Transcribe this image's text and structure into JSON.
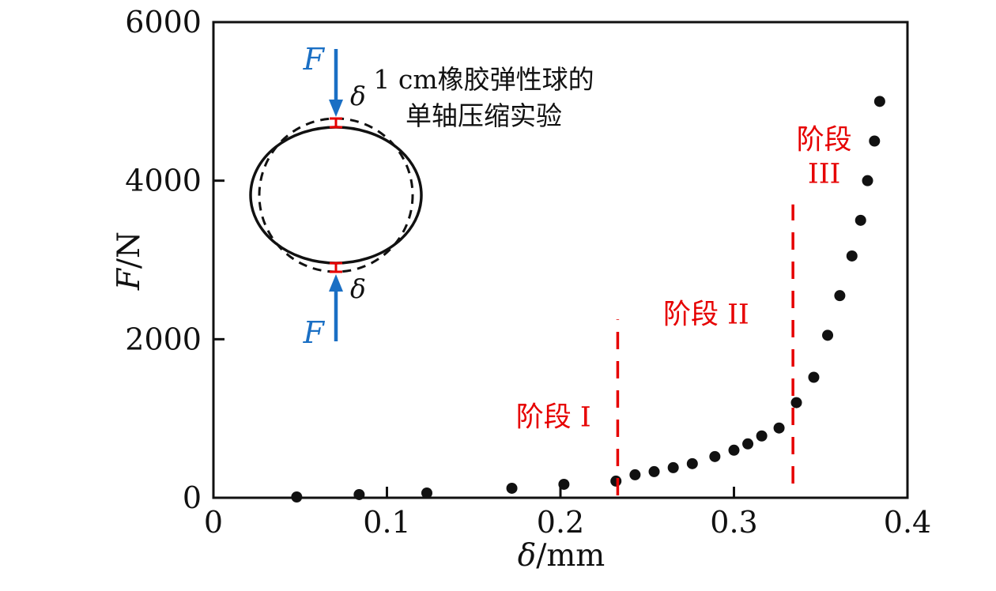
{
  "figure": {
    "background": "#ffffff"
  },
  "colors": {
    "black": "#111111",
    "red": "#e60000",
    "blue": "#1a6fc4"
  },
  "inset": {
    "force_label": "F",
    "delta_label": "δ"
  },
  "chart_data": {
    "type": "scatter",
    "title_lines": [
      "1 cm橡胶弹性球的",
      "单轴压缩实验"
    ],
    "xlabel": {
      "symbol": "δ",
      "unit": "/mm"
    },
    "ylabel": {
      "symbol": "F",
      "unit": "/N"
    },
    "xlim": [
      0,
      0.4
    ],
    "ylim": [
      0,
      6000
    ],
    "x_ticks": [
      0,
      0.1,
      0.2,
      0.3,
      0.4
    ],
    "x_tick_labels": [
      "0",
      "0.1",
      "0.2",
      "0.3",
      "0.4"
    ],
    "y_ticks": [
      0,
      2000,
      4000,
      6000
    ],
    "y_tick_labels": [
      "0",
      "2000",
      "4000",
      "6000"
    ],
    "grid": false,
    "legend": false,
    "points": [
      [
        0.048,
        10
      ],
      [
        0.084,
        40
      ],
      [
        0.123,
        60
      ],
      [
        0.172,
        120
      ],
      [
        0.202,
        170
      ],
      [
        0.232,
        210
      ],
      [
        0.243,
        290
      ],
      [
        0.254,
        330
      ],
      [
        0.265,
        380
      ],
      [
        0.276,
        430
      ],
      [
        0.289,
        520
      ],
      [
        0.3,
        600
      ],
      [
        0.308,
        680
      ],
      [
        0.316,
        780
      ],
      [
        0.326,
        880
      ],
      [
        0.336,
        1200
      ],
      [
        0.346,
        1520
      ],
      [
        0.354,
        2050
      ],
      [
        0.361,
        2550
      ],
      [
        0.368,
        3050
      ],
      [
        0.373,
        3500
      ],
      [
        0.377,
        4000
      ],
      [
        0.381,
        4500
      ],
      [
        0.384,
        5000
      ]
    ],
    "stage_lines": [
      {
        "x": 0.233,
        "f_start": 30,
        "f_end": 2250
      },
      {
        "x": 0.334,
        "f_start": 180,
        "f_end": 3700
      }
    ],
    "stage_labels": [
      {
        "lines": [
          "阶段 I"
        ],
        "x": 0.196,
        "f": 900
      },
      {
        "lines": [
          "阶段 II"
        ],
        "x": 0.284,
        "f": 2200
      },
      {
        "lines": [
          "阶段",
          "III"
        ],
        "x": 0.352,
        "f": 4400
      }
    ]
  }
}
